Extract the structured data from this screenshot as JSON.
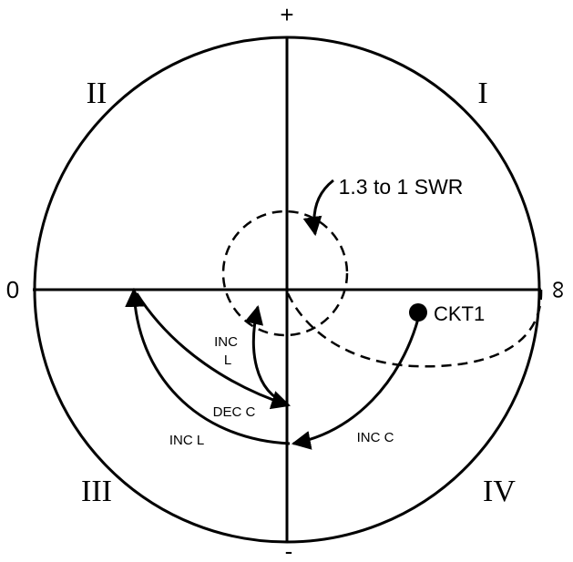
{
  "quadrants": {
    "q1": "I",
    "q2": "II",
    "q3": "III",
    "q4": "IV"
  },
  "axes": {
    "top": "+",
    "bottom": "-",
    "left": "0",
    "right": "∞"
  },
  "annotations": {
    "swr": "1.3 to 1 SWR",
    "ckt1": "CKT1",
    "inc_c": "INC C",
    "inc_l_lower": "INC L",
    "dec_c": "DEC C",
    "inc_l_upper_line1": "INC",
    "inc_l_upper_line2": "L"
  }
}
